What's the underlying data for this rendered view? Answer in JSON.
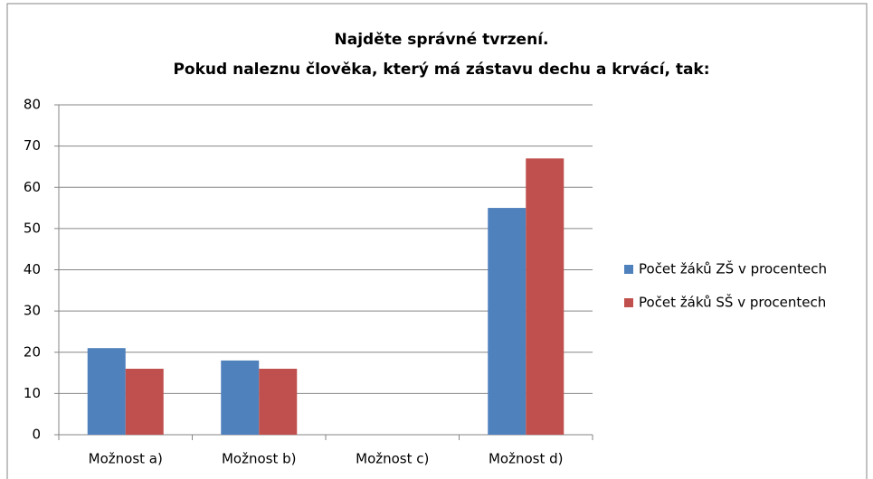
{
  "chart_data": {
    "type": "bar",
    "title": [
      "Najděte správné tvrzení.",
      "Pokud naleznu člověka, který má zástavu dechu a krvácí, tak:"
    ],
    "categories": [
      "Možnost a)",
      "Možnost b)",
      "Možnost c)",
      "Možnost d)"
    ],
    "series": [
      {
        "name": "Počet žáků ZŠ v procentech",
        "color": "#4f81bd",
        "values": [
          21,
          18,
          0,
          55
        ]
      },
      {
        "name": "Počet žáků SŠ v procentech",
        "color": "#c0504d",
        "values": [
          16,
          16,
          0,
          67
        ]
      }
    ],
    "ylim": [
      0,
      80
    ],
    "yticks": [
      0,
      10,
      20,
      30,
      40,
      50,
      60,
      70,
      80
    ],
    "grid": true,
    "legend": "right"
  }
}
